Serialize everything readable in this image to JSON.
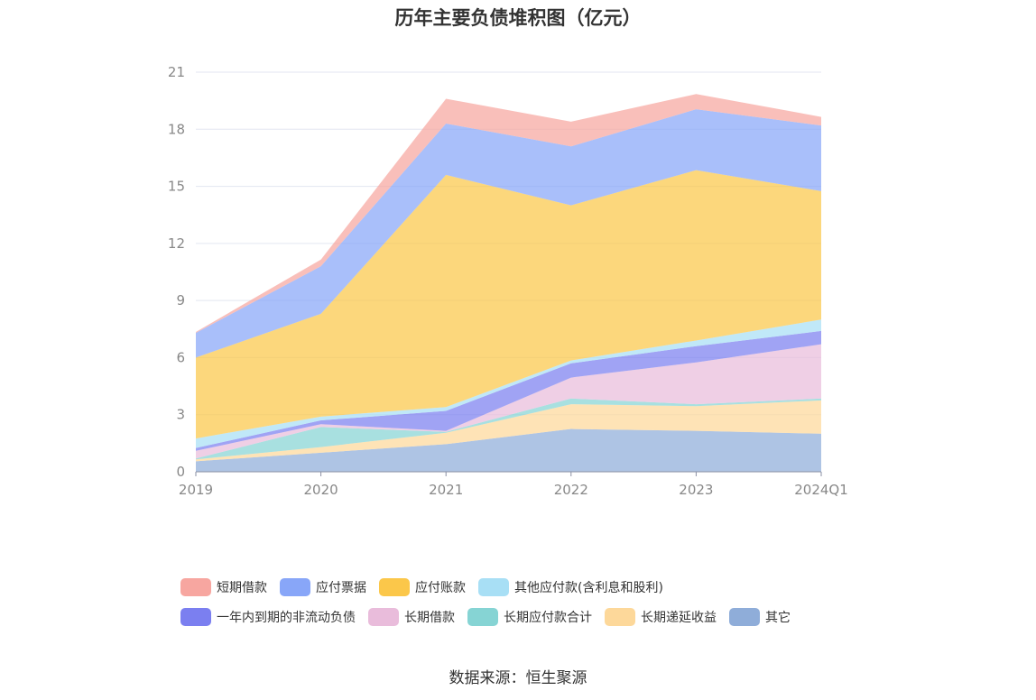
{
  "chart_data": {
    "type": "area",
    "stacked": true,
    "title": "历年主要负债堆积图（亿元）",
    "categories": [
      "2019",
      "2020",
      "2021",
      "2022",
      "2023",
      "2024Q1"
    ],
    "ylim": [
      0,
      21
    ],
    "yticks": [
      0,
      3,
      6,
      9,
      12,
      15,
      18,
      21
    ],
    "grid": true,
    "legend_position": "bottom",
    "series": [
      {
        "name": "其它",
        "color": "#8fadd9",
        "values": [
          0.55,
          1.0,
          1.45,
          2.25,
          2.15,
          2.0
        ]
      },
      {
        "name": "长期递延收益",
        "color": "#fdd89a",
        "values": [
          0.1,
          0.3,
          0.6,
          1.3,
          1.3,
          1.75
        ]
      },
      {
        "name": "长期应付款合计",
        "color": "#86d4d4",
        "values": [
          0.05,
          1.05,
          0.05,
          0.3,
          0.1,
          0.1
        ]
      },
      {
        "name": "长期借款",
        "color": "#e9bcdb",
        "values": [
          0.4,
          0.15,
          0.05,
          1.1,
          2.2,
          2.85
        ]
      },
      {
        "name": "一年内到期的非流动负债",
        "color": "#7b7ff0",
        "values": [
          0.15,
          0.2,
          1.05,
          0.75,
          0.85,
          0.7
        ]
      },
      {
        "name": "其他应付款(含利息和股利)",
        "color": "#a8dff5",
        "values": [
          0.5,
          0.2,
          0.2,
          0.15,
          0.3,
          0.6
        ]
      },
      {
        "name": "应付账款",
        "color": "#fbc74a",
        "values": [
          4.25,
          5.4,
          12.2,
          8.15,
          8.95,
          6.75
        ]
      },
      {
        "name": "应付票据",
        "color": "#88a6f8",
        "values": [
          1.3,
          2.5,
          2.7,
          3.1,
          3.2,
          3.45
        ]
      },
      {
        "name": "短期借款",
        "color": "#f7a6a0",
        "values": [
          0.05,
          0.35,
          1.3,
          1.3,
          0.8,
          0.45
        ]
      }
    ]
  },
  "legend": {
    "rows": [
      [
        {
          "label": "短期借款",
          "color": "#f7a6a0"
        },
        {
          "label": "应付票据",
          "color": "#88a6f8"
        },
        {
          "label": "应付账款",
          "color": "#fbc74a"
        },
        {
          "label": "其他应付款(含利息和股利)",
          "color": "#a8dff5"
        }
      ],
      [
        {
          "label": "一年内到期的非流动负债",
          "color": "#7b7ff0"
        },
        {
          "label": "长期借款",
          "color": "#e9bcdb"
        },
        {
          "label": "长期应付款合计",
          "color": "#86d4d4"
        },
        {
          "label": "长期递延收益",
          "color": "#fdd89a"
        },
        {
          "label": "其它",
          "color": "#8fadd9"
        }
      ]
    ]
  },
  "source": "数据来源：恒生聚源"
}
